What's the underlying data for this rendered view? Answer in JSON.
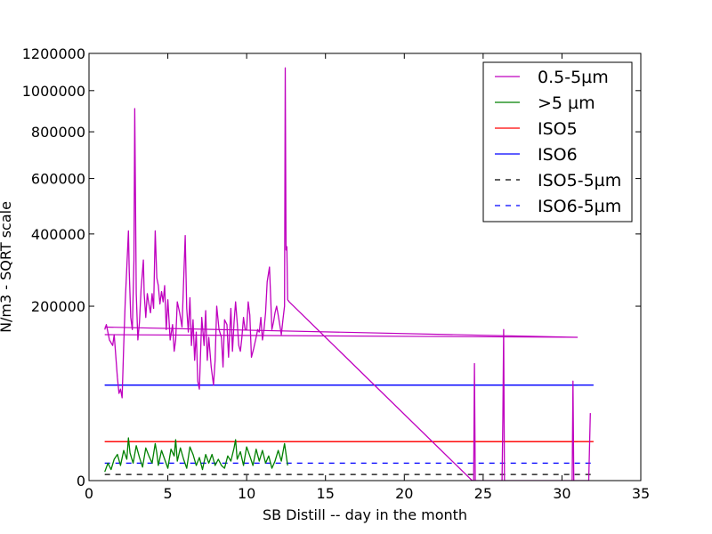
{
  "chart_data": {
    "type": "line",
    "title": "",
    "xlabel": "SB Distill -- day in the month",
    "ylabel": "N/m3 - SQRT scale",
    "y_scale": "sqrt",
    "xlim": [
      0,
      35
    ],
    "ylim": [
      0,
      1200000
    ],
    "grid": false,
    "legend_position": "top-right",
    "x_ticks": [
      "0",
      "5",
      "10",
      "15",
      "20",
      "25",
      "30",
      "35"
    ],
    "x_tick_values": [
      0,
      5,
      10,
      15,
      20,
      25,
      30,
      35
    ],
    "y_ticks": [
      "0",
      "200000",
      "400000",
      "600000",
      "800000",
      "1000000",
      "1200000"
    ],
    "y_tick_values": [
      0,
      200000,
      400000,
      600000,
      800000,
      1000000,
      1200000
    ],
    "series": [
      {
        "name": "0.5-5µm",
        "color": "#bf00bf",
        "style": "solid",
        "x": [
          1.0,
          1.1,
          1.3,
          1.5,
          1.6,
          1.8,
          1.9,
          2.0,
          2.1,
          2.2,
          2.3,
          2.4,
          2.5,
          2.55,
          2.65,
          2.75,
          2.85,
          2.9,
          3.0,
          3.1,
          3.2,
          3.3,
          3.45,
          3.5,
          3.6,
          3.7,
          3.8,
          3.9,
          4.0,
          4.1,
          4.2,
          4.3,
          4.4,
          4.5,
          4.6,
          4.7,
          4.8,
          4.9,
          5.0,
          5.15,
          5.3,
          5.4,
          5.5,
          5.6,
          5.75,
          5.9,
          6.0,
          6.1,
          6.2,
          6.3,
          6.4,
          6.5,
          6.6,
          6.7,
          6.8,
          6.9,
          7.0,
          7.15,
          7.3,
          7.4,
          7.5,
          7.6,
          7.75,
          7.9,
          8.0,
          8.1,
          8.25,
          8.4,
          8.5,
          8.6,
          8.75,
          8.85,
          9.0,
          9.1,
          9.2,
          9.3,
          9.4,
          9.5,
          9.6,
          9.7,
          9.8,
          9.9,
          10.0,
          10.1,
          10.2,
          10.3,
          10.45,
          10.6,
          10.7,
          10.8,
          10.9,
          11.0,
          11.1,
          11.2,
          11.3,
          11.45,
          11.6,
          11.7,
          11.8,
          11.9,
          12.0,
          12.1,
          12.2,
          12.3,
          12.4,
          12.45,
          12.5,
          12.55,
          12.6,
          12.7,
          24.3,
          24.4,
          24.45,
          24.5,
          26.2,
          26.25,
          26.3,
          26.35,
          30.6,
          30.65,
          30.7,
          30.75,
          31.6,
          31.7,
          31.8
        ],
        "y": [
          150000,
          160000,
          130000,
          120000,
          140000,
          70000,
          50000,
          55000,
          45000,
          120000,
          210000,
          300000,
          410000,
          290000,
          175000,
          150000,
          320000,
          910000,
          230000,
          130000,
          165000,
          240000,
          320000,
          230000,
          175000,
          230000,
          205000,
          185000,
          230000,
          195000,
          410000,
          270000,
          250000,
          205000,
          235000,
          210000,
          250000,
          150000,
          215000,
          130000,
          160000,
          110000,
          130000,
          210000,
          185000,
          155000,
          260000,
          395000,
          195000,
          145000,
          220000,
          120000,
          170000,
          95000,
          145000,
          65000,
          55000,
          175000,
          120000,
          190000,
          95000,
          135000,
          85000,
          60000,
          95000,
          200000,
          150000,
          135000,
          85000,
          170000,
          160000,
          100000,
          195000,
          110000,
          165000,
          210000,
          165000,
          120000,
          110000,
          135000,
          175000,
          150000,
          150000,
          210000,
          180000,
          100000,
          115000,
          135000,
          150000,
          145000,
          175000,
          130000,
          150000,
          185000,
          260000,
          300000,
          150000,
          165000,
          185000,
          200000,
          180000,
          160000,
          140000,
          170000,
          200000,
          1120000,
          350000,
          360000,
          215000,
          210000,
          0,
          0,
          90000,
          0,
          0,
          25000,
          150000,
          0,
          0,
          0,
          65000,
          0,
          0,
          0,
          30000
        ]
      },
      {
        "name": ">5 µm",
        "color": "#008000",
        "style": "solid",
        "x": [
          1.0,
          1.2,
          1.4,
          1.6,
          1.8,
          2.0,
          2.2,
          2.4,
          2.5,
          2.6,
          2.8,
          3.0,
          3.2,
          3.4,
          3.6,
          3.8,
          4.0,
          4.2,
          4.3,
          4.4,
          4.6,
          4.8,
          5.0,
          5.2,
          5.4,
          5.5,
          5.6,
          5.8,
          6.0,
          6.2,
          6.4,
          6.6,
          6.8,
          7.0,
          7.2,
          7.4,
          7.6,
          7.8,
          8.0,
          8.2,
          8.4,
          8.6,
          8.8,
          9.0,
          9.2,
          9.3,
          9.4,
          9.6,
          9.8,
          10.0,
          10.2,
          10.4,
          10.6,
          10.8,
          11.0,
          11.2,
          11.4,
          11.6,
          11.8,
          12.0,
          12.2,
          12.4,
          12.6
        ],
        "y": [
          500,
          2000,
          800,
          3000,
          4500,
          1500,
          6000,
          3000,
          12000,
          5000,
          2000,
          8000,
          3500,
          1200,
          7000,
          4000,
          2000,
          9000,
          5000,
          1500,
          6000,
          3000,
          1000,
          6500,
          4000,
          11000,
          2500,
          7000,
          3000,
          1000,
          7500,
          4500,
          1500,
          3500,
          800,
          4500,
          2000,
          4500,
          1500,
          3000,
          1500,
          1000,
          4000,
          2500,
          7000,
          11000,
          3000,
          5500,
          1500,
          7500,
          4000,
          1500,
          6500,
          2500,
          6000,
          2000,
          4000,
          1000,
          2500,
          6000,
          2500,
          9000,
          1500
        ]
      },
      {
        "name": "ISO5",
        "color": "#ff0000",
        "style": "solid",
        "x": [
          1.0,
          32.0
        ],
        "y": [
          10000,
          10000
        ]
      },
      {
        "name": "ISO6",
        "color": "#0000ff",
        "style": "solid",
        "x": [
          1.0,
          32.0
        ],
        "y": [
          60000,
          60000
        ]
      },
      {
        "name": "ISO5-5µm",
        "color": "#000000",
        "style": "dashed",
        "x": [
          1.0,
          32.0
        ],
        "y": [
          250,
          250
        ]
      },
      {
        "name": "ISO6-5µm",
        "color": "#0000ff",
        "style": "dashed",
        "x": [
          1.0,
          32.0
        ],
        "y": [
          2000,
          2000
        ]
      }
    ],
    "wrap_segments": [
      {
        "series": "0.5-5µm",
        "x": [
          31.0,
          1.0,
          31.0,
          1.0
        ],
        "y": [
          135000,
          155000,
          135000,
          140000
        ]
      },
      {
        "series": "ISO5",
        "x": [
          31.0,
          1.0
        ],
        "y": [
          10000,
          10000
        ]
      },
      {
        "series": "ISO6",
        "x": [
          31.0,
          1.0
        ],
        "y": [
          60000,
          60000
        ]
      }
    ]
  }
}
